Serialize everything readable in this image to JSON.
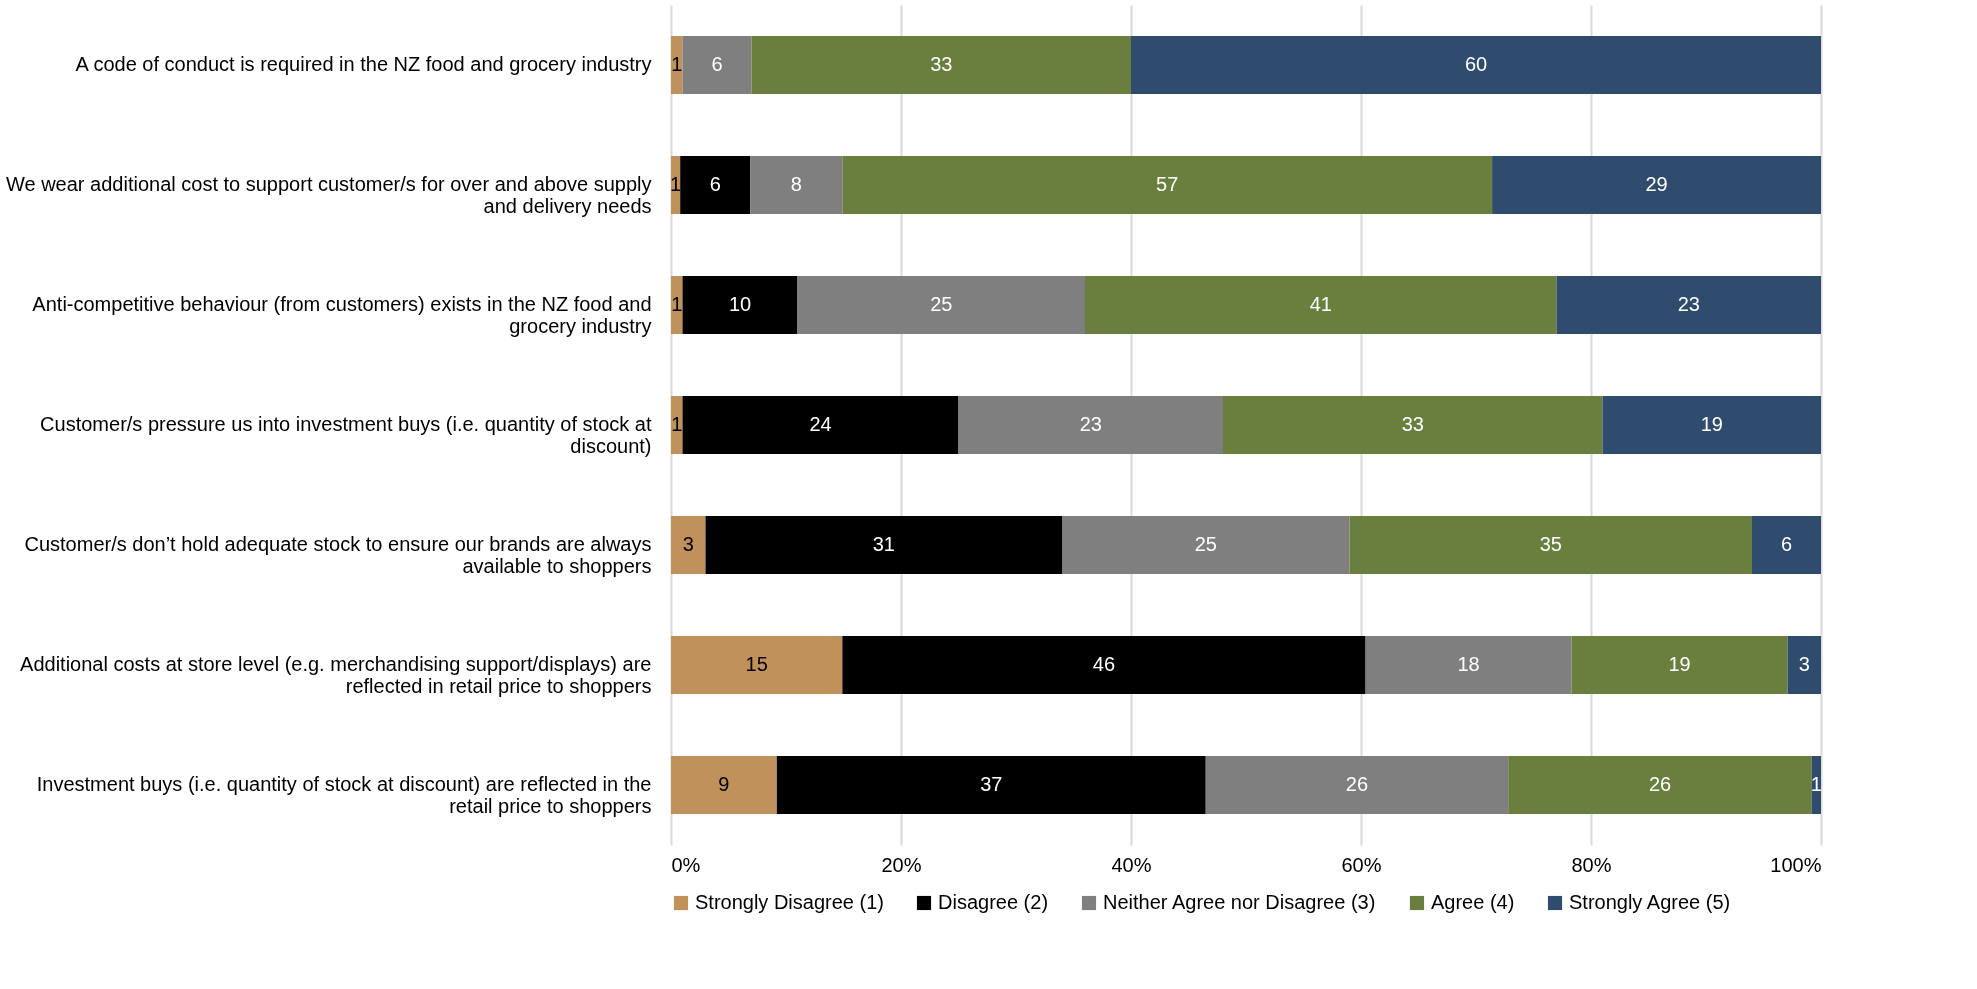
{
  "chart_data": {
    "type": "bar",
    "orientation": "horizontal",
    "stacked": true,
    "categories": [
      "A code of conduct is required in the NZ food and grocery industry",
      "We wear additional cost to support customer/s for over and above supply and delivery needs",
      "Anti-competitive behaviour (from customers) exists in the NZ food and grocery industry",
      "Customer/s pressure us into investment buys (i.e. quantity of stock at discount)",
      "Customer/s don’t hold adequate stock to ensure our brands are always available to shoppers",
      "Additional costs at store level (e.g. merchandising support/displays) are reflected in retail price to shoppers",
      "Investment buys (i.e. quantity of stock at discount) are reflected in the retail price to shoppers"
    ],
    "series": [
      {
        "name": "Strongly Disagree (1)",
        "color": "#c0915a",
        "values": [
          1,
          0.8,
          1,
          1,
          3,
          14.9,
          9.2
        ],
        "value_labels": [
          "1",
          "1",
          "1",
          "1",
          "3",
          "15",
          "9"
        ]
      },
      {
        "name": "Disagree (2)",
        "color": "#000000",
        "values": [
          null,
          6.1,
          10,
          24,
          31,
          45.5,
          37.3
        ],
        "value_labels": [
          null,
          "6",
          "10",
          "24",
          "31",
          "46",
          "37"
        ]
      },
      {
        "name": "Neither Agree nor Disagree (3)",
        "color": "#7f7f7f",
        "values": [
          6,
          8.0,
          25,
          23,
          25,
          17.9,
          26.3
        ],
        "value_labels": [
          "6",
          "8",
          "25",
          "23",
          "25",
          "18",
          "26"
        ]
      },
      {
        "name": "Agree (4)",
        "color": "#6a7f3e",
        "values": [
          33,
          56.5,
          41,
          33,
          35,
          18.8,
          26.4
        ],
        "value_labels": [
          "33",
          "57",
          "41",
          "33",
          "35",
          "19",
          "26"
        ]
      },
      {
        "name": "Strongly Agree (5)",
        "color": "#2f4b6e",
        "values": [
          60,
          28.6,
          23,
          19,
          6,
          2.9,
          0.8
        ],
        "value_labels": [
          "60",
          "29",
          "23",
          "19",
          "6",
          "3",
          "1"
        ]
      }
    ],
    "xlim": [
      0,
      100
    ],
    "xticks": [
      {
        "value": 0,
        "label": "0%"
      },
      {
        "value": 20,
        "label": "20%"
      },
      {
        "value": 40,
        "label": "40%"
      },
      {
        "value": 60,
        "label": "60%"
      },
      {
        "value": 80,
        "label": "80%"
      },
      {
        "value": 100,
        "label": "100%"
      }
    ],
    "grid": "x",
    "legend": "bottom"
  }
}
